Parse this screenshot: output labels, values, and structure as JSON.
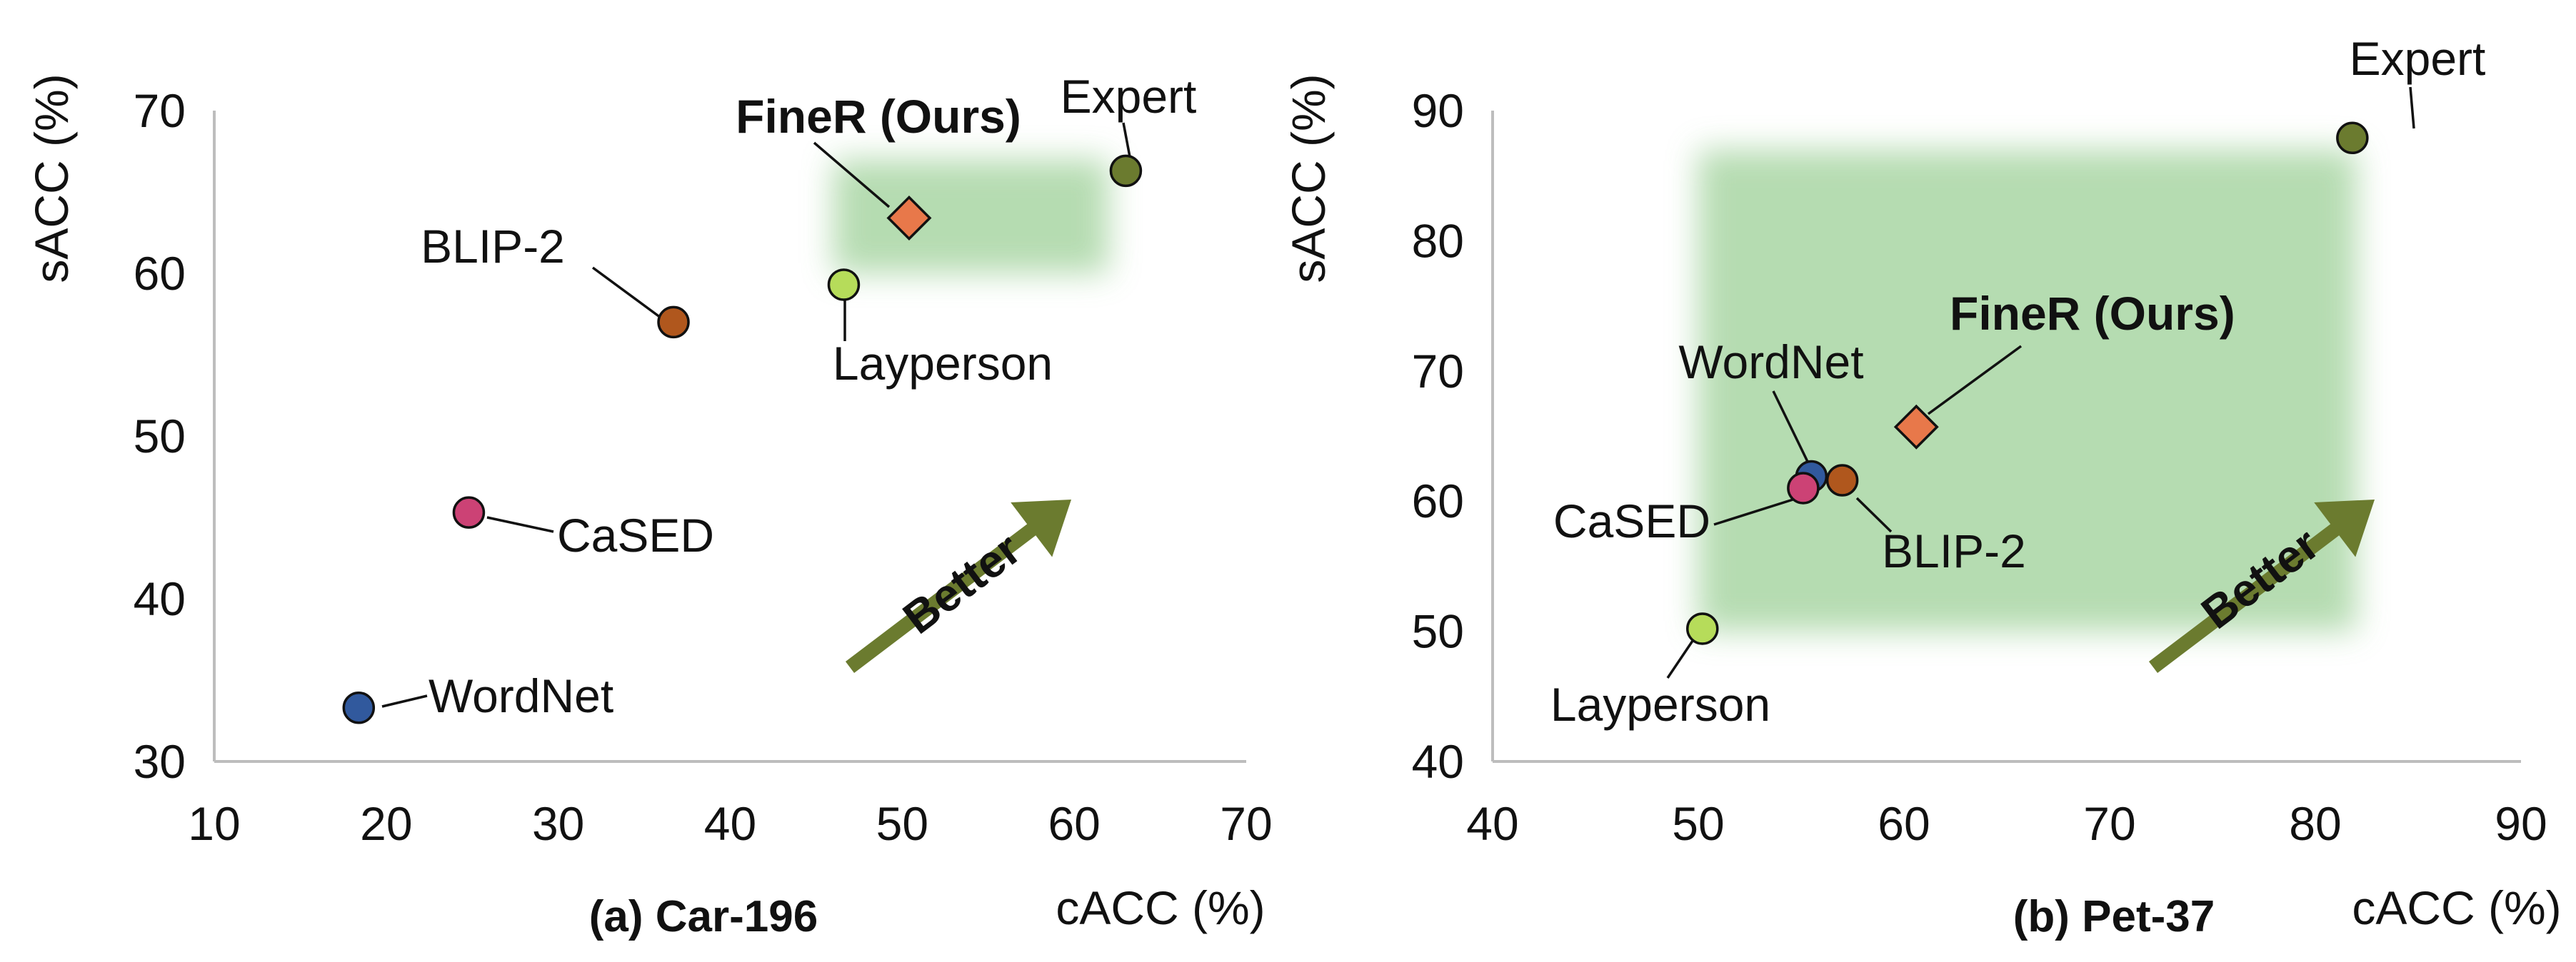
{
  "chart_data": [
    {
      "type": "scatter",
      "caption": "(a) Car-196",
      "xlabel": "cACC (%)",
      "ylabel": "sACC (%)",
      "xlim": [
        10,
        70
      ],
      "ylim": [
        30,
        70
      ],
      "xticks": [
        10,
        20,
        30,
        40,
        50,
        60,
        70
      ],
      "yticks": [
        30,
        40,
        50,
        60,
        70
      ],
      "grid": false,
      "highlight_region": {
        "x": [
          46,
          62
        ],
        "y": [
          60,
          67
        ]
      },
      "points": [
        {
          "label": "Expert",
          "x": 63.0,
          "y": 66.3,
          "marker": "circle",
          "color": "#6b7b2f",
          "bold": false
        },
        {
          "label": "FineR (Ours)",
          "x": 50.4,
          "y": 63.4,
          "marker": "diamond",
          "color": "#e8784a",
          "bold": true
        },
        {
          "label": "Layperson",
          "x": 46.6,
          "y": 59.3,
          "marker": "circle",
          "color": "#b6dc5a",
          "bold": false
        },
        {
          "label": "BLIP-2",
          "x": 36.7,
          "y": 57.0,
          "marker": "circle",
          "color": "#b0571d",
          "bold": false
        },
        {
          "label": "CaSED",
          "x": 24.8,
          "y": 45.3,
          "marker": "circle",
          "color": "#cc4275",
          "bold": false
        },
        {
          "label": "WordNet",
          "x": 18.4,
          "y": 33.3,
          "marker": "circle",
          "color": "#31599d",
          "bold": false
        }
      ],
      "annotation": "Better"
    },
    {
      "type": "scatter",
      "caption": "(b) Pet-37",
      "xlabel": "cACC (%)",
      "ylabel": "sACC (%)",
      "xlim": [
        40,
        90
      ],
      "ylim": [
        40,
        90
      ],
      "xticks": [
        40,
        50,
        60,
        70,
        80,
        90
      ],
      "yticks": [
        40,
        50,
        60,
        70,
        80,
        90
      ],
      "grid": false,
      "highlight_region": {
        "x": [
          50,
          82
        ],
        "y": [
          50,
          87
        ]
      },
      "points": [
        {
          "label": "Expert",
          "x": 81.8,
          "y": 87.9,
          "marker": "circle",
          "color": "#6b7b2f",
          "bold": false
        },
        {
          "label": "FineR (Ours)",
          "x": 60.6,
          "y": 65.7,
          "marker": "diamond",
          "color": "#e8784a",
          "bold": true
        },
        {
          "label": "WordNet",
          "x": 55.5,
          "y": 61.9,
          "marker": "circle",
          "color": "#31599d",
          "bold": false
        },
        {
          "label": "CaSED",
          "x": 55.1,
          "y": 61.0,
          "marker": "circle",
          "color": "#cc4275",
          "bold": false
        },
        {
          "label": "BLIP-2",
          "x": 57.0,
          "y": 61.6,
          "marker": "circle",
          "color": "#b0571d",
          "bold": false
        },
        {
          "label": "Layperson",
          "x": 50.2,
          "y": 50.2,
          "marker": "circle",
          "color": "#b6dc5a",
          "bold": false
        }
      ],
      "annotation": "Better"
    }
  ],
  "colors": {
    "arrow": "#6b7b2f",
    "highlight": "#a9d6a4",
    "axis": "#bdbdbd",
    "text": "#111111"
  }
}
